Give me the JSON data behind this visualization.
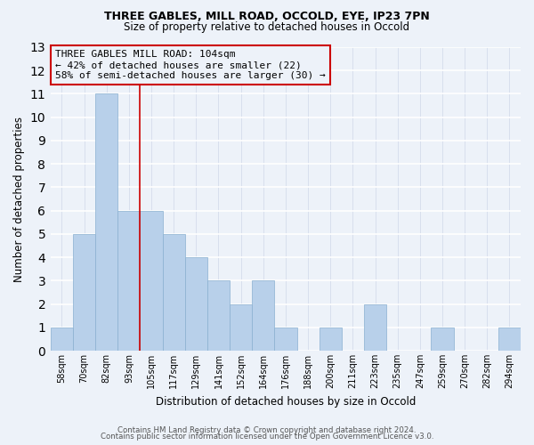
{
  "title1": "THREE GABLES, MILL ROAD, OCCOLD, EYE, IP23 7PN",
  "title2": "Size of property relative to detached houses in Occold",
  "xlabel": "Distribution of detached houses by size in Occold",
  "ylabel": "Number of detached properties",
  "bin_labels": [
    "58sqm",
    "70sqm",
    "82sqm",
    "93sqm",
    "105sqm",
    "117sqm",
    "129sqm",
    "141sqm",
    "152sqm",
    "164sqm",
    "176sqm",
    "188sqm",
    "200sqm",
    "211sqm",
    "223sqm",
    "235sqm",
    "247sqm",
    "259sqm",
    "270sqm",
    "282sqm",
    "294sqm"
  ],
  "bin_counts": [
    1,
    5,
    11,
    6,
    6,
    5,
    4,
    3,
    2,
    3,
    1,
    0,
    1,
    0,
    2,
    0,
    0,
    1,
    0,
    0,
    1
  ],
  "bar_color": "#b8d0ea",
  "bar_edge_color": "#8ab0d0",
  "vline_color": "#cc0000",
  "annotation_line1": "THREE GABLES MILL ROAD: 104sqm",
  "annotation_line2": "← 42% of detached houses are smaller (22)",
  "annotation_line3": "58% of semi-detached houses are larger (30) →",
  "ylim": [
    0,
    13
  ],
  "yticks": [
    0,
    1,
    2,
    3,
    4,
    5,
    6,
    7,
    8,
    9,
    10,
    11,
    12,
    13
  ],
  "footer1": "Contains HM Land Registry data © Crown copyright and database right 2024.",
  "footer2": "Contains public sector information licensed under the Open Government Licence v3.0.",
  "bg_color": "#edf2f9",
  "grid_color": "#d0d8e8"
}
